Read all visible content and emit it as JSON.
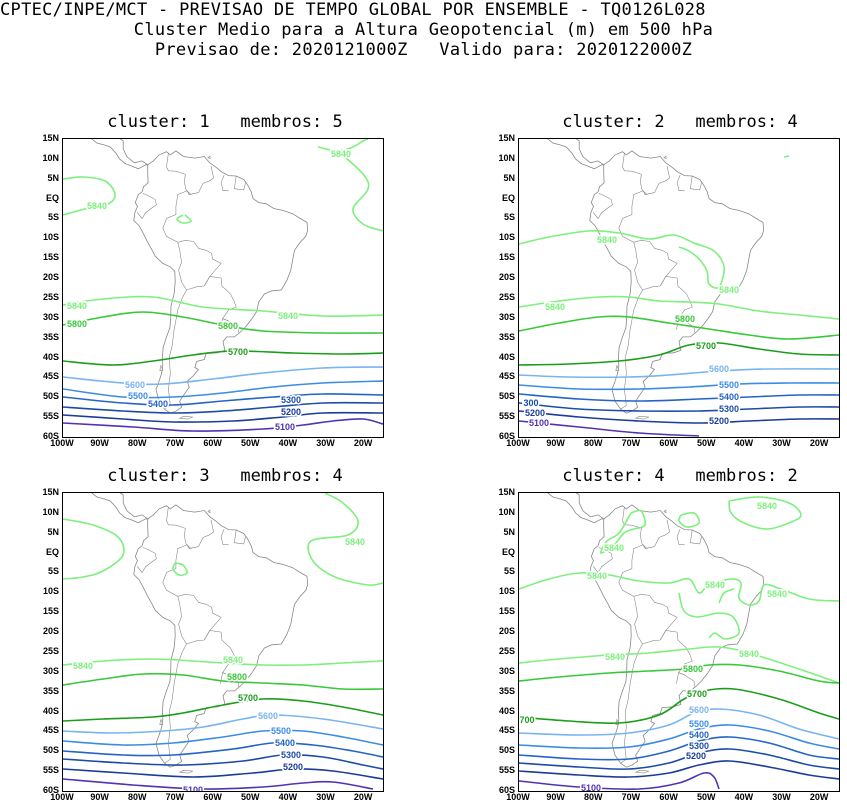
{
  "header": {
    "line1": "CPTEC/INPE/MCT - PREVISAO DE TEMPO GLOBAL POR ENSEMBLE - TQ0126L028",
    "line2": "Cluster Medio para a Altura Geopotencial (m) em 500 hPa",
    "line3": "Previsao de: 2020121000Z   Valido para: 2020122000Z"
  },
  "axes": {
    "lat_labels": [
      "15N",
      "10N",
      "5N",
      "EQ",
      "5S",
      "10S",
      "15S",
      "20S",
      "25S",
      "30S",
      "35S",
      "40S",
      "45S",
      "50S",
      "55S",
      "60S"
    ],
    "lon_labels": [
      "100W",
      "90W",
      "80W",
      "70W",
      "60W",
      "50W",
      "40W",
      "30W",
      "20W"
    ]
  },
  "colors": {
    "c5840": "#7df07d",
    "c5800": "#38c838",
    "c5700": "#1a9e1a",
    "c5600": "#78b4f0",
    "c5500": "#3c8ce6",
    "c5400": "#2464c8",
    "c5300": "#1c4ca8",
    "c5200": "#1a3c9a",
    "c5100": "#5032b4",
    "coast": "#888888"
  },
  "panels": [
    {
      "title": "cluster: 1   membros: 5",
      "labels": {
        "l5840a": "5840",
        "l5840b": "5840",
        "l5840c": "5840",
        "l5840d": "5840",
        "l5800a": "5800",
        "l5800b": "5800",
        "l5700": "5700",
        "l5600": "5600",
        "l5500": "5500",
        "l5400": "5400",
        "l5300": "5300",
        "l5200": "5200",
        "l5100": "5100"
      }
    },
    {
      "title": "cluster: 2   membros: 4",
      "labels": {
        "l5840a": "5840",
        "l5840b": "5840",
        "l5840c": "5840",
        "l5800": "5800",
        "l5700": "5700",
        "l5600": "5600",
        "l5500": "5500",
        "l5400": "5400",
        "l5300a": "5300",
        "l5300b": "300",
        "l5200a": "5200",
        "l5200b": "5200",
        "l5100": "5100"
      }
    },
    {
      "title": "cluster: 3   membros: 4",
      "labels": {
        "l5840a": "5840",
        "l5840b": "5840",
        "l5840c": "5840",
        "l5800": "5800",
        "l5700": "5700",
        "l5600": "5600",
        "l5500": "5500",
        "l5400": "5400",
        "l5300": "5300",
        "l5200": "5200",
        "l5100": "5100"
      }
    },
    {
      "title": "cluster: 4   membros: 2",
      "labels": {
        "l5840a": "5840",
        "l5840b": "5840",
        "l5840c": "5840",
        "l5840d": "5840",
        "l5840e": "5840",
        "l5840f": "5840",
        "l5840g": "5840",
        "l5800": "5800",
        "l5700a": "5700",
        "l5700b": "700",
        "l5600": "5600",
        "l5500": "5500",
        "l5400": "5400",
        "l5300": "5300",
        "l5200": "5200",
        "l5100": "5100"
      }
    }
  ]
}
